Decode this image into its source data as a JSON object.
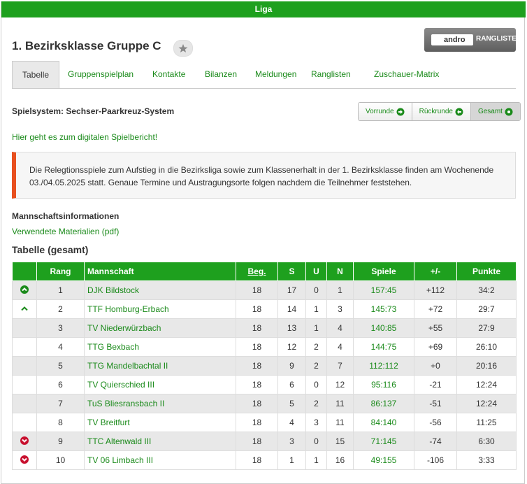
{
  "header": {
    "title": "Liga"
  },
  "league": {
    "title": "1. Bezirksklasse Gruppe C",
    "badge_brand": "andro",
    "badge_text": "RANGLISTE"
  },
  "tabs": [
    "Tabelle",
    "Gruppenspielplan",
    "Kontakte",
    "Bilanzen",
    "Meldungen",
    "Ranglisten",
    "Zuschauer-Matrix"
  ],
  "active_tab": 0,
  "spielsystem": "Spielsystem: Sechser-Paarkreuz-System",
  "round_buttons": [
    "Vorrunde",
    "Rückrunde",
    "Gesamt"
  ],
  "active_round": 2,
  "report_link": "Hier geht es zum digitalen Spielbericht!",
  "notice": "Die Relegtionsspiele zum Aufstieg in die Bezirksliga sowie zum Klassenerhalt in der 1. Bezirksklasse finden am Wochenende 03./04.05.2025 statt. Genaue Termine und Austragungsorte folgen nachdem die Teilnehmer feststehen.",
  "team_info": {
    "title": "Mannschaftsinformationen",
    "link": "Verwendete Materialien (pdf)"
  },
  "table": {
    "title": "Tabelle (gesamt)",
    "columns": [
      "Rang",
      "Mannschaft",
      "Beg.",
      "S",
      "U",
      "N",
      "Spiele",
      "+/-",
      "Punkte"
    ],
    "rows": [
      {
        "trend": "promotion",
        "cells": [
          1,
          "DJK Bildstock",
          18,
          17,
          0,
          1,
          "157:45",
          "+112",
          "34:2"
        ]
      },
      {
        "trend": "relegation-up",
        "cells": [
          2,
          "TTF Homburg-Erbach",
          18,
          14,
          1,
          3,
          "145:73",
          "+72",
          "29:7"
        ]
      },
      {
        "cells": [
          3,
          "TV Niederwürzbach",
          18,
          13,
          1,
          4,
          "140:85",
          "+55",
          "27:9"
        ]
      },
      {
        "cells": [
          4,
          "TTG Bexbach",
          18,
          12,
          2,
          4,
          "144:75",
          "+69",
          "26:10"
        ]
      },
      {
        "cells": [
          5,
          "TTG Mandelbachtal II",
          18,
          9,
          2,
          7,
          "112:112",
          "+0",
          "20:16"
        ]
      },
      {
        "cells": [
          6,
          "TV Quierschied III",
          18,
          6,
          0,
          12,
          "95:116",
          -21,
          "12:24"
        ]
      },
      {
        "cells": [
          7,
          "TuS Bliesransbach II",
          18,
          5,
          2,
          11,
          "86:137",
          -51,
          "12:24"
        ]
      },
      {
        "cells": [
          8,
          "TV Breitfurt",
          18,
          4,
          3,
          11,
          "84:140",
          -56,
          "11:25"
        ]
      },
      {
        "trend": "relegation",
        "cells": [
          9,
          "TTC Altenwald III",
          18,
          3,
          0,
          15,
          "71:145",
          -74,
          "6:30"
        ]
      },
      {
        "trend": "relegation",
        "cells": [
          10,
          "TV 06 Limbach III",
          18,
          1,
          1,
          16,
          "49:155",
          -106,
          "3:33"
        ]
      }
    ]
  }
}
